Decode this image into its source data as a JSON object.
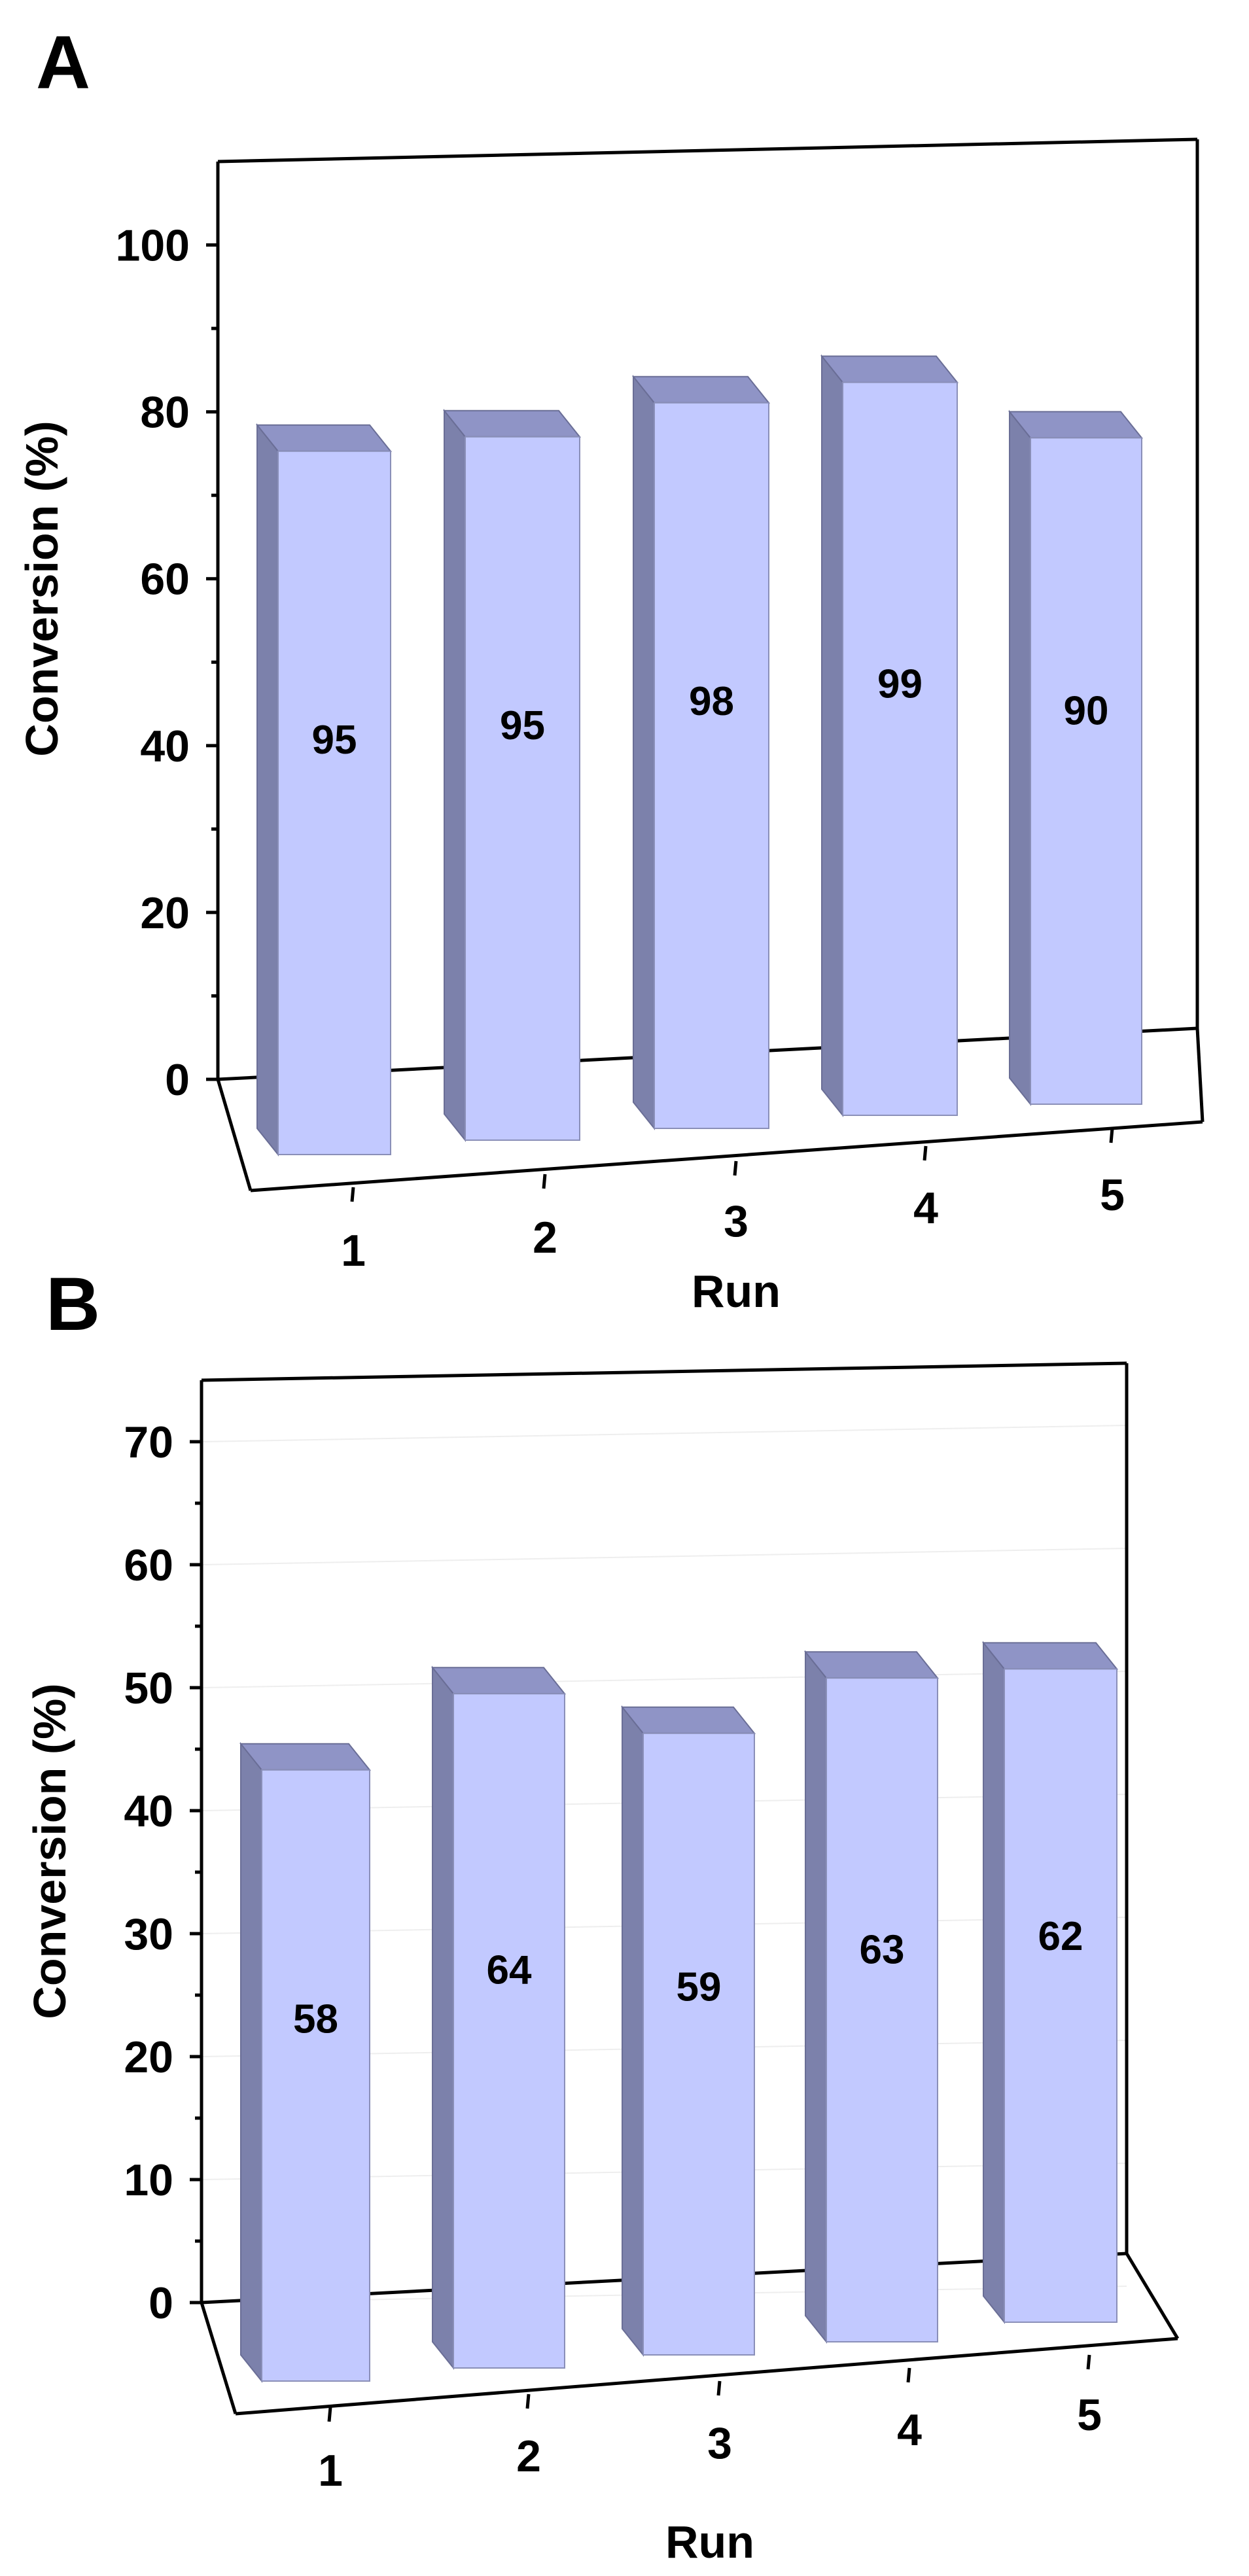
{
  "colors": {
    "bar_front": "#c2c9ff",
    "bar_side": "#7c81ab",
    "bar_top": "#8f94c6",
    "axis": "#000000"
  },
  "chart_data": [
    {
      "panel": "A",
      "type": "bar",
      "style": "3d",
      "categories": [
        "1",
        "2",
        "3",
        "4",
        "5"
      ],
      "values": [
        95,
        95,
        98,
        99,
        90
      ],
      "data_labels": [
        "95",
        "95",
        "98",
        "99",
        "90"
      ],
      "xlabel": "Run",
      "ylabel": "Conversion (%)",
      "ylim": [
        0,
        110
      ],
      "yticks": [
        0,
        20,
        40,
        60,
        80,
        100
      ],
      "ytick_labels": [
        "0",
        "20",
        "40",
        "60",
        "80",
        "100"
      ],
      "grid": false,
      "legend": "none"
    },
    {
      "panel": "B",
      "type": "bar",
      "style": "3d",
      "categories": [
        "1",
        "2",
        "3",
        "4",
        "5"
      ],
      "values": [
        58,
        64,
        59,
        63,
        62
      ],
      "data_labels": [
        "58",
        "64",
        "59",
        "63",
        "62"
      ],
      "xlabel": "Run",
      "ylabel": "Conversion (%)",
      "ylim": [
        0,
        75
      ],
      "yticks": [
        0,
        10,
        20,
        30,
        40,
        50,
        60,
        70
      ],
      "ytick_labels": [
        "0",
        "10",
        "20",
        "30",
        "40",
        "50",
        "60",
        "70"
      ],
      "grid": true,
      "legend": "none"
    }
  ]
}
